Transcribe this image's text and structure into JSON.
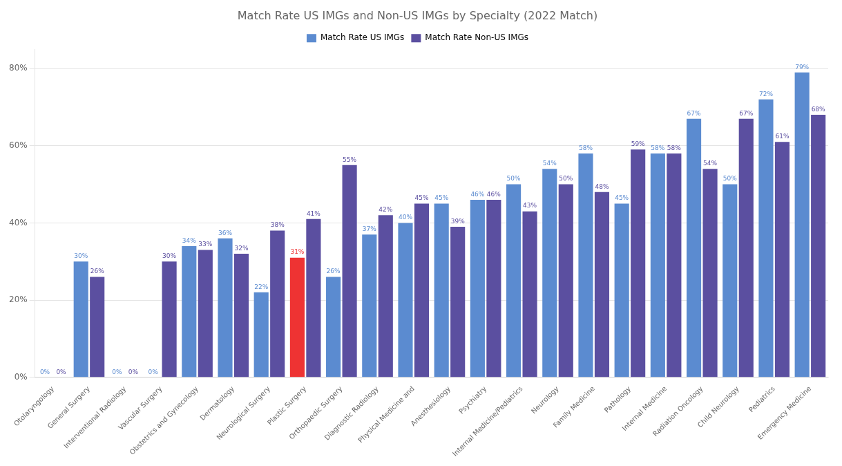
{
  "chart_data": {
    "type": "bar",
    "title": "Match Rate US IMGs and Non-US IMGs by Specialty (2022 Match)",
    "categories": [
      "Otolaryngology",
      "General Surgery",
      "Interventional Radiology",
      "Vascular Surgery",
      "Obstetrics and Gynecology",
      "Dermatology",
      "Neurological Surgery",
      "Plastic Surgery",
      "Orthopaedic Surgery",
      "Diagnostic Radiology",
      "Physical Medicine and",
      "Anesthesiology",
      "Psychiatry",
      "Internal Medicine/Pediatrics",
      "Neurology",
      "Family Medicine",
      "Pathology",
      "Internal Medicine",
      "Radiation Oncology",
      "Child Neurology",
      "Pediatrics",
      "Emergency Medicine"
    ],
    "series": [
      {
        "name": "Match Rate US IMGs",
        "color": "#5B8BD0",
        "colors": [
          "#5B8BD0",
          "#5B8BD0",
          "#5B8BD0",
          "#5B8BD0",
          "#5B8BD0",
          "#5B8BD0",
          "#5B8BD0",
          "#EE3333",
          "#5B8BD0",
          "#5B8BD0",
          "#5B8BD0",
          "#5B8BD0",
          "#5B8BD0",
          "#5B8BD0",
          "#5B8BD0",
          "#5B8BD0",
          "#5B8BD0",
          "#5B8BD0",
          "#5B8BD0",
          "#5B8BD0",
          "#5B8BD0",
          "#5B8BD0"
        ],
        "values": [
          0,
          30,
          0,
          0,
          34,
          36,
          22,
          31,
          26,
          37,
          40,
          45,
          46,
          50,
          54,
          58,
          45,
          58,
          67,
          50,
          72,
          79
        ],
        "value_labels": [
          "0%",
          "30%",
          "0%",
          "0%",
          "34%",
          "36%",
          "22%",
          "31%",
          "26%",
          "37%",
          "40%",
          "45%",
          "46%",
          "50%",
          "54%",
          "58%",
          "45%",
          "58%",
          "67%",
          "50%",
          "72%",
          "79%"
        ]
      },
      {
        "name": "Match Rate Non-US IMGs",
        "color": "#5B4FA0",
        "values": [
          0,
          26,
          0,
          30,
          33,
          32,
          38,
          41,
          55,
          42,
          45,
          39,
          46,
          43,
          50,
          48,
          59,
          58,
          54,
          67,
          61,
          68
        ],
        "value_labels": [
          "0%",
          "26%",
          "0%",
          "30%",
          "33%",
          "32%",
          "38%",
          "41%",
          "55%",
          "42%",
          "45%",
          "39%",
          "46%",
          "43%",
          "50%",
          "48%",
          "59%",
          "58%",
          "54%",
          "67%",
          "61%",
          "68%"
        ]
      }
    ],
    "ylim": [
      0,
      85
    ],
    "yticks": [
      {
        "value": 0,
        "label": "0%"
      },
      {
        "value": 20,
        "label": "20%"
      },
      {
        "value": 40,
        "label": "40%"
      },
      {
        "value": 60,
        "label": "60%"
      },
      {
        "value": 80,
        "label": "80%"
      }
    ],
    "grid": true,
    "legend": "top",
    "data_labels": true
  }
}
